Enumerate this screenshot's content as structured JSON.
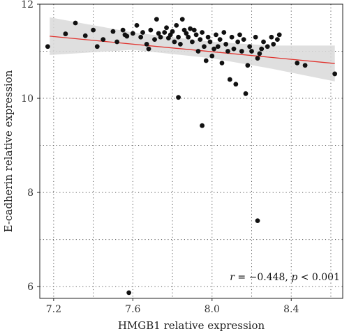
{
  "chart_data": {
    "type": "scatter",
    "xlabel": "HMGB1 relative expression",
    "ylabel": "E-cadherin relative expression",
    "xlim": [
      7.13,
      8.66
    ],
    "ylim": [
      5.75,
      12.0
    ],
    "x_ticks": [
      7.2,
      7.6,
      8.0,
      8.4
    ],
    "x_tick_labels": [
      "7.2",
      "7.6",
      "8.0",
      "8.4"
    ],
    "y_ticks": [
      6,
      8,
      10,
      12
    ],
    "y_tick_labels": [
      "6",
      "8",
      "10",
      "12"
    ],
    "grid": true,
    "grid_style": "dotted",
    "annotation": {
      "r_symbol": "r",
      "r_value": " = −0.448, ",
      "p_symbol": "p",
      "p_value": " < 0.001"
    },
    "regression": {
      "x": [
        7.18,
        8.62
      ],
      "y": [
        11.32,
        10.74
      ],
      "color": "#e0332e"
    },
    "confidence_band": {
      "x": [
        7.18,
        7.6,
        8.0,
        8.3,
        8.62
      ],
      "upper": [
        11.72,
        11.4,
        11.2,
        11.12,
        11.12
      ],
      "lower": [
        10.92,
        11.03,
        10.85,
        10.63,
        10.36
      ],
      "color": "#d9d9d9"
    },
    "point_color": "#111111",
    "points": [
      {
        "x": 7.17,
        "y": 11.1
      },
      {
        "x": 7.26,
        "y": 11.37
      },
      {
        "x": 7.31,
        "y": 11.6
      },
      {
        "x": 7.36,
        "y": 11.33
      },
      {
        "x": 7.4,
        "y": 11.45
      },
      {
        "x": 7.42,
        "y": 11.1
      },
      {
        "x": 7.45,
        "y": 11.25
      },
      {
        "x": 7.5,
        "y": 11.42
      },
      {
        "x": 7.52,
        "y": 11.2
      },
      {
        "x": 7.55,
        "y": 11.45
      },
      {
        "x": 7.56,
        "y": 11.35
      },
      {
        "x": 7.57,
        "y": 11.32
      },
      {
        "x": 7.6,
        "y": 11.38
      },
      {
        "x": 7.62,
        "y": 11.55
      },
      {
        "x": 7.64,
        "y": 11.3
      },
      {
        "x": 7.65,
        "y": 11.4
      },
      {
        "x": 7.67,
        "y": 11.15
      },
      {
        "x": 7.68,
        "y": 11.05
      },
      {
        "x": 7.69,
        "y": 11.45
      },
      {
        "x": 7.71,
        "y": 11.25
      },
      {
        "x": 7.72,
        "y": 11.68
      },
      {
        "x": 7.73,
        "y": 11.38
      },
      {
        "x": 7.74,
        "y": 11.3
      },
      {
        "x": 7.76,
        "y": 11.4
      },
      {
        "x": 7.77,
        "y": 11.5
      },
      {
        "x": 7.78,
        "y": 11.28
      },
      {
        "x": 7.79,
        "y": 11.35
      },
      {
        "x": 7.8,
        "y": 11.42
      },
      {
        "x": 7.81,
        "y": 11.2
      },
      {
        "x": 7.82,
        "y": 11.55
      },
      {
        "x": 7.83,
        "y": 11.3
      },
      {
        "x": 7.84,
        "y": 11.15
      },
      {
        "x": 7.85,
        "y": 11.68
      },
      {
        "x": 7.86,
        "y": 11.45
      },
      {
        "x": 7.87,
        "y": 11.38
      },
      {
        "x": 7.88,
        "y": 11.3
      },
      {
        "x": 7.89,
        "y": 11.48
      },
      {
        "x": 7.9,
        "y": 11.2
      },
      {
        "x": 7.91,
        "y": 11.45
      },
      {
        "x": 7.92,
        "y": 11.35
      },
      {
        "x": 7.93,
        "y": 11.0
      },
      {
        "x": 7.94,
        "y": 11.25
      },
      {
        "x": 7.95,
        "y": 11.4
      },
      {
        "x": 7.96,
        "y": 11.1
      },
      {
        "x": 7.97,
        "y": 10.8
      },
      {
        "x": 7.98,
        "y": 11.3
      },
      {
        "x": 7.99,
        "y": 11.2
      },
      {
        "x": 8.0,
        "y": 10.9
      },
      {
        "x": 8.01,
        "y": 11.05
      },
      {
        "x": 8.02,
        "y": 11.35
      },
      {
        "x": 8.03,
        "y": 11.1
      },
      {
        "x": 8.04,
        "y": 11.25
      },
      {
        "x": 8.05,
        "y": 10.75
      },
      {
        "x": 8.06,
        "y": 11.4
      },
      {
        "x": 8.07,
        "y": 11.15
      },
      {
        "x": 8.08,
        "y": 11.0
      },
      {
        "x": 8.09,
        "y": 10.4
      },
      {
        "x": 8.1,
        "y": 11.3
      },
      {
        "x": 8.11,
        "y": 11.05
      },
      {
        "x": 8.12,
        "y": 10.3
      },
      {
        "x": 8.13,
        "y": 11.2
      },
      {
        "x": 8.14,
        "y": 11.35
      },
      {
        "x": 8.15,
        "y": 11.0
      },
      {
        "x": 8.16,
        "y": 11.25
      },
      {
        "x": 8.17,
        "y": 10.1
      },
      {
        "x": 8.18,
        "y": 10.7
      },
      {
        "x": 8.19,
        "y": 11.1
      },
      {
        "x": 8.2,
        "y": 11.0
      },
      {
        "x": 8.22,
        "y": 11.3
      },
      {
        "x": 8.23,
        "y": 10.85
      },
      {
        "x": 8.24,
        "y": 10.95
      },
      {
        "x": 8.25,
        "y": 11.05
      },
      {
        "x": 8.26,
        "y": 11.2
      },
      {
        "x": 8.28,
        "y": 11.1
      },
      {
        "x": 8.3,
        "y": 11.3
      },
      {
        "x": 8.31,
        "y": 11.15
      },
      {
        "x": 8.33,
        "y": 11.25
      },
      {
        "x": 8.34,
        "y": 11.35
      },
      {
        "x": 8.43,
        "y": 10.75
      },
      {
        "x": 8.47,
        "y": 10.7
      },
      {
        "x": 8.62,
        "y": 10.52
      },
      {
        "x": 7.83,
        "y": 10.02
      },
      {
        "x": 7.95,
        "y": 9.42
      },
      {
        "x": 8.23,
        "y": 7.4
      },
      {
        "x": 7.58,
        "y": 5.87
      }
    ]
  }
}
